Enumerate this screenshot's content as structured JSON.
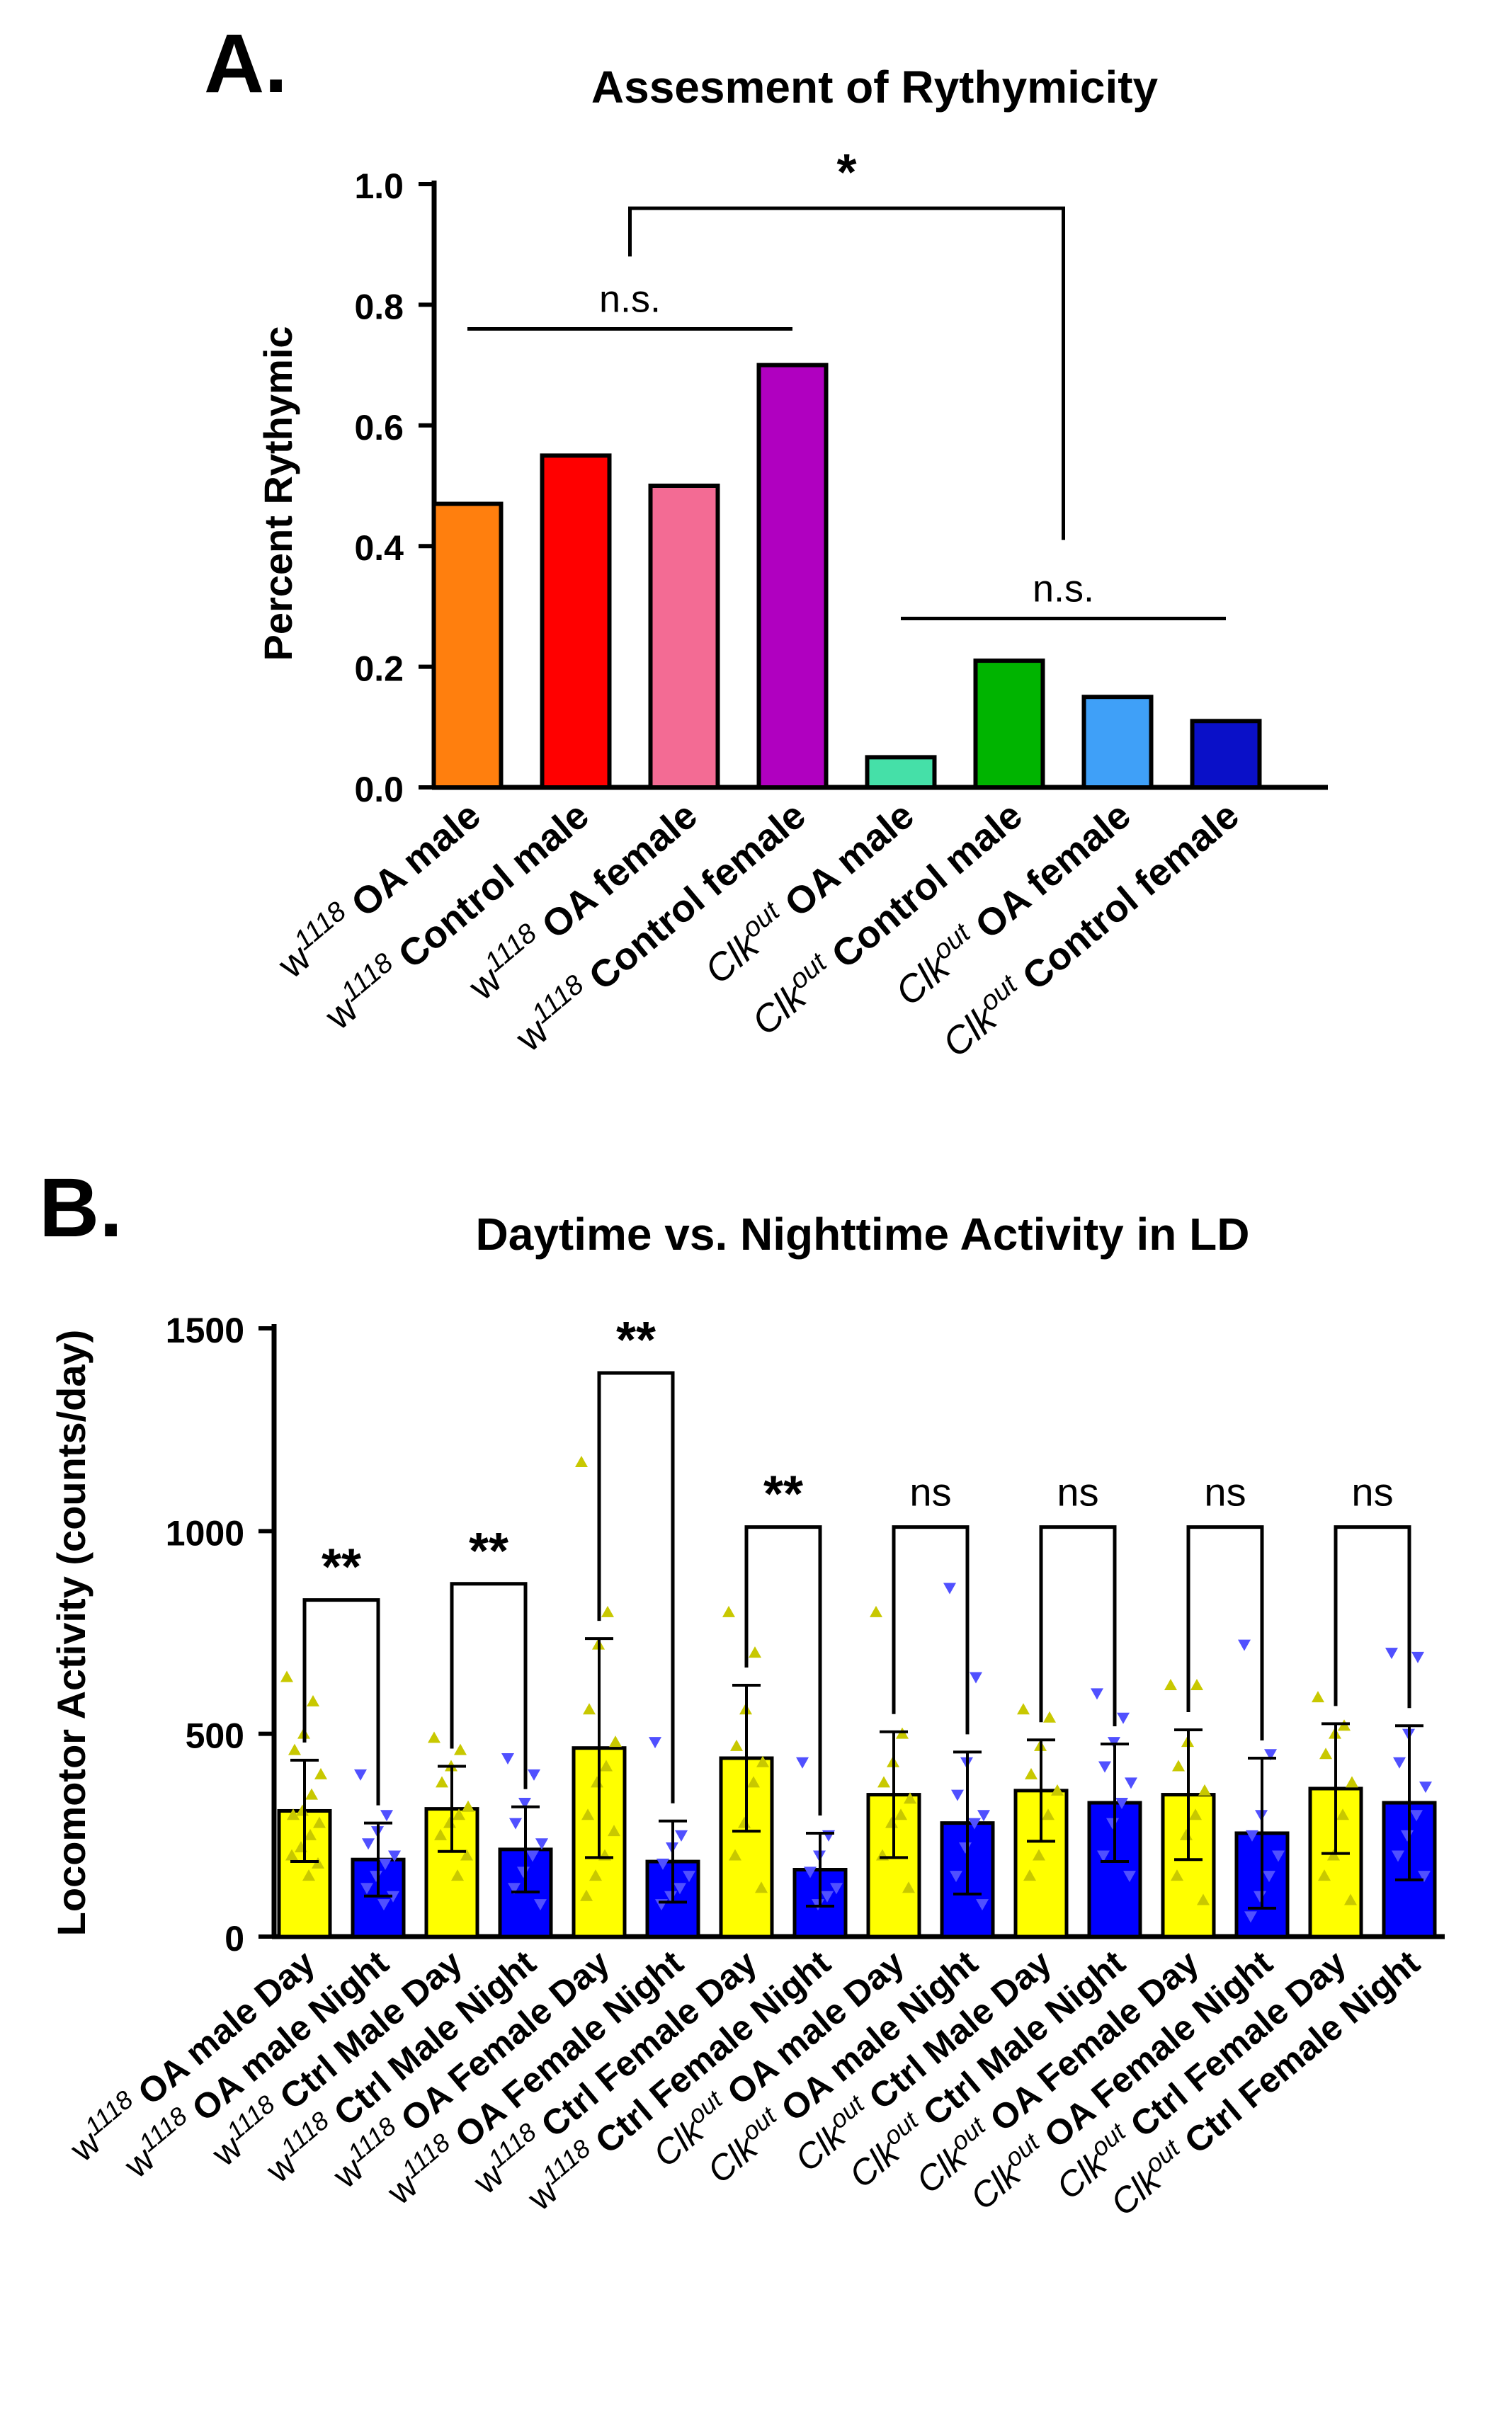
{
  "panel_a_letter": "A.",
  "panel_b_letter": "B.",
  "chart_data": [
    {
      "type": "bar",
      "title": "Assesment of Rythymicity",
      "xlabel": "",
      "ylabel": "Percent Rythymic",
      "ylim": [
        0,
        1.0
      ],
      "yticks": [
        "0.0",
        "0.2",
        "0.4",
        "0.6",
        "0.8",
        "1.0"
      ],
      "categories": [
        {
          "genotype": "w",
          "sup": "1118",
          "label": "OA male"
        },
        {
          "genotype": "w",
          "sup": "1118",
          "label": "Control male"
        },
        {
          "genotype": "w",
          "sup": "1118",
          "label": "OA female"
        },
        {
          "genotype": "w",
          "sup": "1118",
          "label": "Control female"
        },
        {
          "genotype": "Clk",
          "sup": "out",
          "label": "OA male"
        },
        {
          "genotype": "Clk",
          "sup": "out",
          "label": "Control male"
        },
        {
          "genotype": "Clk",
          "sup": "out",
          "label": "OA female"
        },
        {
          "genotype": "Clk",
          "sup": "out",
          "label": "Control female"
        }
      ],
      "values": [
        0.47,
        0.55,
        0.5,
        0.7,
        0.05,
        0.21,
        0.15,
        0.11
      ],
      "colors": [
        "#ff7f0e",
        "#ff0000",
        "#f36b94",
        "#b000c0",
        "#45e0a8",
        "#00b400",
        "#3fa0f8",
        "#0a10c8"
      ],
      "annotations": [
        {
          "text": "n.s.",
          "type": "line",
          "from": 0,
          "to": 3,
          "y": 0.76
        },
        {
          "text": "n.s.",
          "type": "line",
          "from": 4,
          "to": 7,
          "y": 0.28
        },
        {
          "text": "*",
          "type": "bracket",
          "from": 1.5,
          "to": 5.5,
          "y": 0.96,
          "left_end": 0.88,
          "right_end": 0.41
        }
      ]
    },
    {
      "type": "bar",
      "title": "Daytime vs. Nighttime Activity in LD",
      "xlabel": "",
      "ylabel": "Locomotor Activity (counts/day)",
      "ylim": [
        0,
        1500
      ],
      "yticks": [
        "0",
        "500",
        "1000",
        "1500"
      ],
      "categories": [
        {
          "genotype": "w",
          "sup": "1118",
          "label": "OA male Day"
        },
        {
          "genotype": "w",
          "sup": "1118",
          "label": "OA male Night"
        },
        {
          "genotype": "w",
          "sup": "1118",
          "label": "Ctrl Male Day"
        },
        {
          "genotype": "w",
          "sup": "1118",
          "label": "Ctrl Male Night"
        },
        {
          "genotype": "w",
          "sup": "1118",
          "label": "OA Female Day"
        },
        {
          "genotype": "w",
          "sup": "1118",
          "label": "OA Female Night"
        },
        {
          "genotype": "w",
          "sup": "1118",
          "label": "Ctrl Female Day"
        },
        {
          "genotype": "w",
          "sup": "1118",
          "label": "Ctrl Female Night"
        },
        {
          "genotype": "Clk",
          "sup": "out",
          "label": "OA male Day"
        },
        {
          "genotype": "Clk",
          "sup": "out",
          "label": "OA male Night"
        },
        {
          "genotype": "Clk",
          "sup": "out",
          "label": "Ctrl Male Day"
        },
        {
          "genotype": "Clk",
          "sup": "out",
          "label": "Ctrl Male Night"
        },
        {
          "genotype": "Clk",
          "sup": "out",
          "label": "OA Female Day"
        },
        {
          "genotype": "Clk",
          "sup": "out",
          "label": "OA Female Night"
        },
        {
          "genotype": "Clk",
          "sup": "out",
          "label": "Ctrl Female Day"
        },
        {
          "genotype": "Clk",
          "sup": "out",
          "label": "Ctrl Female Night"
        }
      ],
      "values": [
        310,
        190,
        315,
        215,
        465,
        185,
        440,
        165,
        350,
        280,
        360,
        330,
        350,
        255,
        365,
        330
      ],
      "errors": [
        125,
        90,
        105,
        105,
        270,
        100,
        180,
        90,
        155,
        175,
        125,
        145,
        160,
        185,
        160,
        190
      ],
      "day_color": "#ffff00",
      "night_color": "#0000ff",
      "day_point_color": "#c8c800",
      "night_point_color": "#5050ff",
      "points": [
        [
          640,
          580,
          500,
          460,
          400,
          350,
          310,
          300,
          280,
          250,
          220,
          200,
          180,
          150
        ],
        [
          400,
          300,
          260,
          230,
          200,
          180,
          150,
          120,
          100,
          80
        ],
        [
          490,
          460,
          420,
          380,
          320,
          300,
          280,
          250,
          200,
          150
        ],
        [
          440,
          400,
          330,
          280,
          230,
          200,
          160,
          120,
          80
        ],
        [
          1170,
          800,
          720,
          560,
          480,
          420,
          380,
          300,
          260,
          200,
          150,
          100
        ],
        [
          480,
          250,
          220,
          180,
          150,
          120,
          100,
          80
        ],
        [
          800,
          700,
          560,
          470,
          430,
          380,
          280,
          200,
          120
        ],
        [
          430,
          250,
          200,
          160,
          120,
          100,
          80
        ],
        [
          800,
          500,
          430,
          380,
          340,
          300,
          280,
          200,
          120
        ],
        [
          860,
          640,
          430,
          350,
          300,
          280,
          220,
          150,
          80
        ],
        [
          560,
          540,
          470,
          400,
          360,
          300,
          200,
          150
        ],
        [
          600,
          540,
          480,
          420,
          380,
          330,
          280,
          200,
          150
        ],
        [
          620,
          620,
          480,
          420,
          360,
          300,
          250,
          150,
          90
        ],
        [
          720,
          450,
          300,
          250,
          200,
          150,
          100,
          50
        ],
        [
          590,
          520,
          500,
          450,
          380,
          300,
          200,
          150,
          90
        ],
        [
          700,
          690,
          500,
          430,
          370,
          300,
          250,
          200,
          150
        ]
      ],
      "annotations": [
        {
          "text": "**",
          "from": 0,
          "to": 1,
          "y": 830
        },
        {
          "text": "**",
          "from": 2,
          "to": 3,
          "y": 870
        },
        {
          "text": "**",
          "from": 4,
          "to": 5,
          "y": 1390
        },
        {
          "text": "**",
          "from": 6,
          "to": 7,
          "y": 1010
        },
        {
          "text": "ns",
          "from": 8,
          "to": 9,
          "y": 1010
        },
        {
          "text": "ns",
          "from": 10,
          "to": 11,
          "y": 1010
        },
        {
          "text": "ns",
          "from": 12,
          "to": 13,
          "y": 1010
        },
        {
          "text": "ns",
          "from": 14,
          "to": 15,
          "y": 1010
        }
      ]
    }
  ]
}
